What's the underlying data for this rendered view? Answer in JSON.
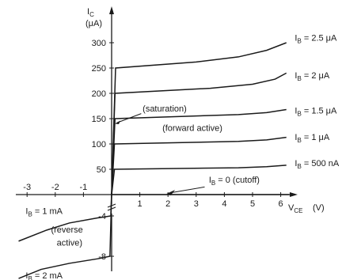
{
  "chart_data": {
    "type": "line",
    "title": "",
    "y_label_main": "I",
    "y_label_sub": "C",
    "y_unit": "(μA)",
    "x_label_main": "V",
    "x_label_sub": "CE",
    "x_unit": "(V)",
    "xlim": [
      -3.4,
      6.6
    ],
    "ylim": [
      -10.5,
      345
    ],
    "y_axis_break": "between 0 and -4",
    "x_ticks": [
      {
        "v": -3,
        "label": "-3"
      },
      {
        "v": -2,
        "label": "-2"
      },
      {
        "v": -1,
        "label": "-1"
      },
      {
        "v": 1,
        "label": "1"
      },
      {
        "v": 2,
        "label": "2"
      },
      {
        "v": 3,
        "label": "3"
      },
      {
        "v": 4,
        "label": "4"
      },
      {
        "v": 5,
        "label": "5"
      },
      {
        "v": 6,
        "label": "6"
      }
    ],
    "y_ticks_upper": [
      {
        "v": 50,
        "label": "50"
      },
      {
        "v": 100,
        "label": "100"
      },
      {
        "v": 150,
        "label": "150"
      },
      {
        "v": 200,
        "label": "200"
      },
      {
        "v": 250,
        "label": "250"
      },
      {
        "v": 300,
        "label": "300"
      }
    ],
    "y_ticks_lower": [
      {
        "v": -4,
        "label": "-4"
      },
      {
        "v": -8,
        "label": "-8"
      }
    ],
    "series": [
      {
        "name": "I_B = 500 nA",
        "label_main": "I",
        "label_sub": "B",
        "label_rest": " = 500 nA",
        "label_at": [
          6.5,
          56
        ],
        "points": [
          [
            0,
            0
          ],
          [
            0.1,
            50
          ],
          [
            4.5,
            53
          ],
          [
            5.5,
            55
          ],
          [
            6.2,
            58
          ]
        ]
      },
      {
        "name": "I_B = 1 μA",
        "label_main": "I",
        "label_sub": "B",
        "label_rest": " = 1 μA",
        "label_at": [
          6.5,
          108
        ],
        "points": [
          [
            0,
            0
          ],
          [
            0.1,
            100
          ],
          [
            4.5,
            105
          ],
          [
            5.5,
            108
          ],
          [
            6.2,
            113
          ]
        ]
      },
      {
        "name": "I_B = 1.5 μA",
        "label_main": "I",
        "label_sub": "B",
        "label_rest": " = 1.5 μA",
        "label_at": [
          6.5,
          160
        ],
        "points": [
          [
            0,
            0
          ],
          [
            0.12,
            150
          ],
          [
            4.5,
            158
          ],
          [
            5.5,
            162
          ],
          [
            6.2,
            168
          ]
        ]
      },
      {
        "name": "I_B = 2 μA",
        "label_main": "I",
        "label_sub": "B",
        "label_rest": " = 2 μA",
        "label_at": [
          6.5,
          230
        ],
        "points": [
          [
            0,
            0
          ],
          [
            0.12,
            200
          ],
          [
            3.5,
            210
          ],
          [
            5,
            218
          ],
          [
            5.8,
            228
          ],
          [
            6.2,
            240
          ]
        ]
      },
      {
        "name": "I_B = 2.5 μA",
        "label_main": "I",
        "label_sub": "B",
        "label_rest": " = 2.5 μA",
        "label_at": [
          6.5,
          304
        ],
        "points": [
          [
            0,
            0
          ],
          [
            0.14,
            250
          ],
          [
            3,
            262
          ],
          [
            4.5,
            272
          ],
          [
            5.5,
            285
          ],
          [
            6.2,
            300
          ]
        ]
      },
      {
        "name": "I_B = 0 (cutoff)",
        "label_main": "I",
        "label_sub": "B",
        "label_rest": " = 0 (cutoff)",
        "label_at": [
          3.45,
          23.5
        ],
        "points": [
          [
            0,
            0
          ],
          [
            6.3,
            0
          ]
        ]
      },
      {
        "name": "I_B = 1 mA",
        "label_main": "I",
        "label_sub": "B",
        "label_rest": " = 1 mA",
        "label_at": [
          -3.05,
          -3.8
        ],
        "points": [
          [
            0,
            -2
          ],
          [
            -0.03,
            -4
          ],
          [
            -0.5,
            -4.2
          ],
          [
            -1.5,
            -4.7
          ],
          [
            -2.3,
            -5.4
          ],
          [
            -3.3,
            -6.5
          ]
        ]
      },
      {
        "name": "I_B = 2 mA",
        "label_main": "I",
        "label_sub": "B",
        "label_rest": " = 2 mA",
        "label_at": [
          -3.05,
          -10.2
        ],
        "points": [
          [
            0,
            -2
          ],
          [
            -0.06,
            -8
          ],
          [
            -0.5,
            -8.25
          ],
          [
            -1.5,
            -8.7
          ],
          [
            -2.5,
            -9.3
          ],
          [
            -3.3,
            -10.2
          ]
        ]
      }
    ],
    "annotations": [
      {
        "id": "saturation",
        "text": "(saturation)",
        "at": [
          1.1,
          164
        ]
      },
      {
        "id": "forward-active",
        "text": "(forward active)",
        "at": [
          1.8,
          126
        ]
      },
      {
        "id": "reverse-active-1",
        "text": "(reverse",
        "at": [
          -2.15,
          -5.65
        ]
      },
      {
        "id": "reverse-active-2",
        "text": "active)",
        "at": [
          -1.95,
          -6.95
        ]
      }
    ]
  }
}
